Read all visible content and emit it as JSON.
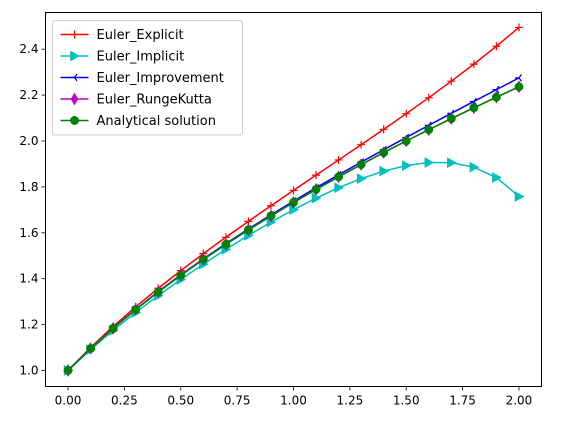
{
  "chart_data": {
    "type": "line",
    "title": "",
    "xlabel": "",
    "ylabel": "",
    "xlim": [
      -0.1,
      2.1
    ],
    "ylim": [
      0.93,
      2.56
    ],
    "xticks": [
      "0.00",
      "0.25",
      "0.50",
      "0.75",
      "1.00",
      "1.25",
      "1.50",
      "1.75",
      "2.00"
    ],
    "yticks": [
      "1.0",
      "1.2",
      "1.4",
      "1.6",
      "1.8",
      "2.0",
      "2.2",
      "2.4"
    ],
    "grid": false,
    "legend_position": "top-left",
    "x": [
      0.0,
      0.1,
      0.2,
      0.3,
      0.4,
      0.5,
      0.6,
      0.7,
      0.8,
      0.9,
      1.0,
      1.1,
      1.2,
      1.3,
      1.4,
      1.5,
      1.6,
      1.7,
      1.8,
      1.9,
      2.0
    ],
    "series": [
      {
        "name": "Euler_Explicit",
        "color": "#ff0000",
        "marker": "plus",
        "values": [
          1.0,
          1.1,
          1.1918,
          1.2774,
          1.3582,
          1.4351,
          1.509,
          1.5803,
          1.6498,
          1.7178,
          1.7848,
          1.8512,
          1.9174,
          1.9838,
          2.0509,
          2.119,
          2.1887,
          2.2606,
          2.3351,
          2.413,
          2.4949
        ]
      },
      {
        "name": "Euler_Implicit",
        "color": "#00bfbf",
        "marker": "triangle-right",
        "values": [
          1.0,
          1.0909,
          1.1743,
          1.2523,
          1.326,
          1.3962,
          1.4633,
          1.5274,
          1.5885,
          1.6464,
          1.7007,
          1.7509,
          1.7963,
          1.836,
          1.8686,
          1.8927,
          1.906,
          1.9053,
          1.8859,
          1.8406,
          1.758
        ]
      },
      {
        "name": "Euler_Improvement",
        "color": "#0000ff",
        "marker": "tri-left",
        "values": [
          1.0,
          1.0959,
          1.1841,
          1.2662,
          1.3434,
          1.4164,
          1.486,
          1.5525,
          1.6165,
          1.6782,
          1.7379,
          1.7959,
          1.8525,
          1.9078,
          1.962,
          2.0154,
          2.0682,
          2.1205,
          2.1723,
          2.2238,
          2.275
        ]
      },
      {
        "name": "Euler_RungeKutta",
        "color": "#bf00bf",
        "marker": "thin-diamond",
        "values": [
          1.0,
          1.0954,
          1.1832,
          1.2649,
          1.3416,
          1.4142,
          1.4832,
          1.5492,
          1.6125,
          1.6733,
          1.7321,
          1.7889,
          1.8439,
          1.8974,
          1.9494,
          2.0,
          2.0494,
          2.0976,
          2.1448,
          2.1909,
          2.2361
        ]
      },
      {
        "name": "Analytical solution",
        "color": "#008000",
        "marker": "circle",
        "values": [
          1.0,
          1.0954,
          1.1832,
          1.2649,
          1.3416,
          1.4142,
          1.4832,
          1.5492,
          1.6125,
          1.6733,
          1.7321,
          1.7889,
          1.8439,
          1.8974,
          1.9494,
          2.0,
          2.0494,
          2.0976,
          2.1448,
          2.1909,
          2.2361
        ]
      }
    ]
  }
}
